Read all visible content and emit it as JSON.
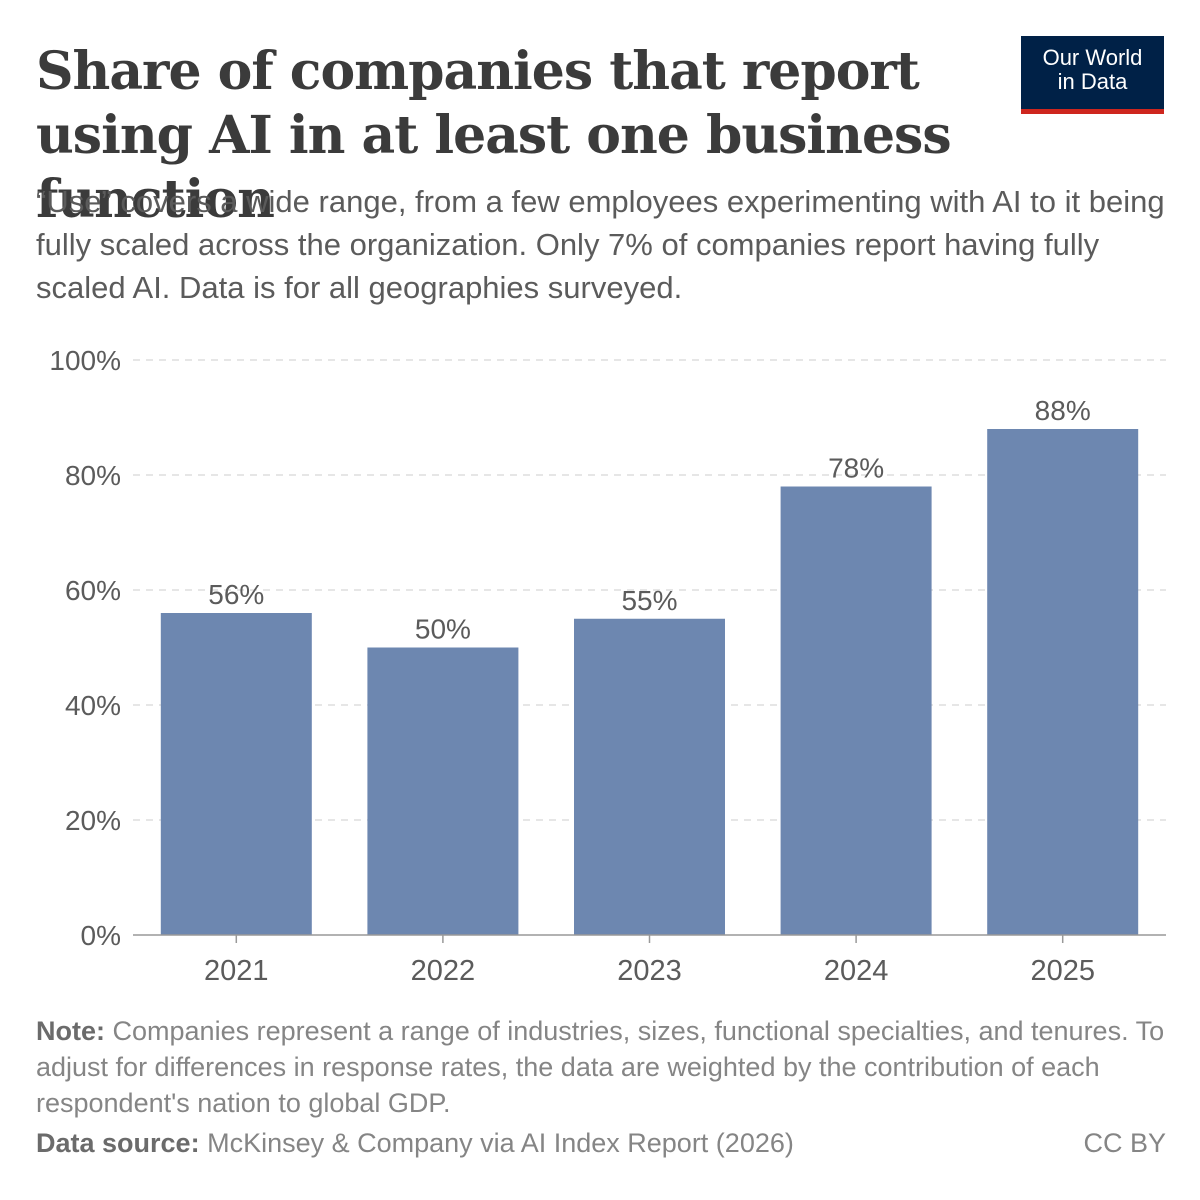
{
  "header": {
    "title": "Share of companies that report using AI in at least one business function",
    "subtitle": "“Use” covers a wide range, from a few employees experimenting with AI to it being fully scaled across the organization. Only 7% of companies report having fully scaled AI. Data is for all geographies surveyed."
  },
  "logo": {
    "line1": "Our World",
    "line2": "in Data",
    "bg_color": "#002147",
    "accent_color": "#ce261e"
  },
  "chart_data": {
    "type": "bar",
    "categories": [
      "2021",
      "2022",
      "2023",
      "2024",
      "2025"
    ],
    "values": [
      56,
      50,
      55,
      78,
      88
    ],
    "value_labels": [
      "56%",
      "50%",
      "55%",
      "78%",
      "88%"
    ],
    "title": "Share of companies that report using AI in at least one business function",
    "xlabel": "",
    "ylabel": "",
    "ylim": [
      0,
      100
    ],
    "yticks": [
      0,
      20,
      40,
      60,
      80,
      100
    ],
    "ytick_labels": [
      "0%",
      "20%",
      "40%",
      "60%",
      "80%",
      "100%"
    ],
    "grid": true,
    "bar_color": "#6d87b0"
  },
  "footer": {
    "note_label": "Note:",
    "note_text": "Companies represent a range of industries, sizes, functional specialties, and tenures. To adjust for differences in response rates, the data are weighted by the contribution of each respondent's nation to global GDP.",
    "source_label": "Data source:",
    "source_text": "McKinsey & Company via AI Index Report (2026)",
    "license": "CC BY"
  }
}
